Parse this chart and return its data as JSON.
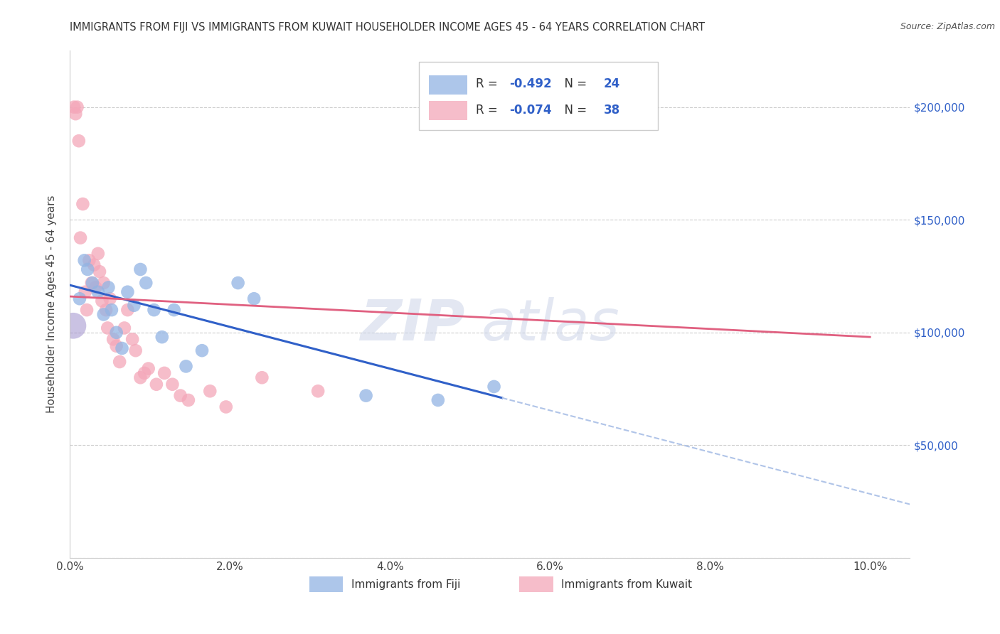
{
  "title": "IMMIGRANTS FROM FIJI VS IMMIGRANTS FROM KUWAIT HOUSEHOLDER INCOME AGES 45 - 64 YEARS CORRELATION CHART",
  "source": "Source: ZipAtlas.com",
  "ylabel": "Householder Income Ages 45 - 64 years",
  "fiji_color": "#92b4e3",
  "kuwait_color": "#f4a7b9",
  "fiji_R": -0.492,
  "fiji_N": 24,
  "kuwait_R": -0.074,
  "kuwait_N": 38,
  "legend_color": "#3060c8",
  "legend_label_fiji": "Immigrants from Fiji",
  "legend_label_kuwait": "Immigrants from Kuwait",
  "fiji_scatter_x": [
    0.12,
    0.18,
    0.22,
    0.28,
    0.35,
    0.42,
    0.48,
    0.52,
    0.58,
    0.65,
    0.72,
    0.8,
    0.88,
    0.95,
    1.05,
    1.15,
    1.3,
    1.45,
    1.65,
    2.1,
    2.3,
    3.7,
    4.6,
    5.3
  ],
  "fiji_scatter_y": [
    115000,
    132000,
    128000,
    122000,
    118000,
    108000,
    120000,
    110000,
    100000,
    93000,
    118000,
    112000,
    128000,
    122000,
    110000,
    98000,
    110000,
    85000,
    92000,
    122000,
    115000,
    72000,
    70000,
    76000
  ],
  "kuwait_scatter_x": [
    0.05,
    0.07,
    0.09,
    0.11,
    0.13,
    0.16,
    0.19,
    0.21,
    0.24,
    0.27,
    0.3,
    0.32,
    0.35,
    0.37,
    0.4,
    0.42,
    0.45,
    0.47,
    0.5,
    0.54,
    0.58,
    0.62,
    0.68,
    0.72,
    0.78,
    0.82,
    0.88,
    0.93,
    0.98,
    1.08,
    1.18,
    1.28,
    1.38,
    1.48,
    1.75,
    1.95,
    2.4,
    3.1
  ],
  "kuwait_scatter_y": [
    200000,
    197000,
    200000,
    185000,
    142000,
    157000,
    118000,
    110000,
    132000,
    122000,
    130000,
    120000,
    135000,
    127000,
    114000,
    122000,
    110000,
    102000,
    115000,
    97000,
    94000,
    87000,
    102000,
    110000,
    97000,
    92000,
    80000,
    82000,
    84000,
    77000,
    82000,
    77000,
    72000,
    70000,
    74000,
    67000,
    80000,
    74000
  ],
  "fiji_line_x0": 0.0,
  "fiji_line_x1": 5.4,
  "fiji_line_y0": 121000,
  "fiji_line_y1": 71000,
  "fiji_dash_x0": 5.4,
  "fiji_dash_x1": 10.5,
  "kuwait_line_x0": 0.0,
  "kuwait_line_x1": 10.0,
  "kuwait_line_y0": 116000,
  "kuwait_line_y1": 98000,
  "background_color": "#ffffff",
  "grid_color": "#cccccc",
  "xlim": [
    0,
    10.5
  ],
  "ylim": [
    0,
    225000
  ],
  "ytick_vals": [
    0,
    50000,
    100000,
    150000,
    200000
  ],
  "xlabel_vals": [
    0.0,
    2.0,
    4.0,
    6.0,
    8.0,
    10.0
  ]
}
